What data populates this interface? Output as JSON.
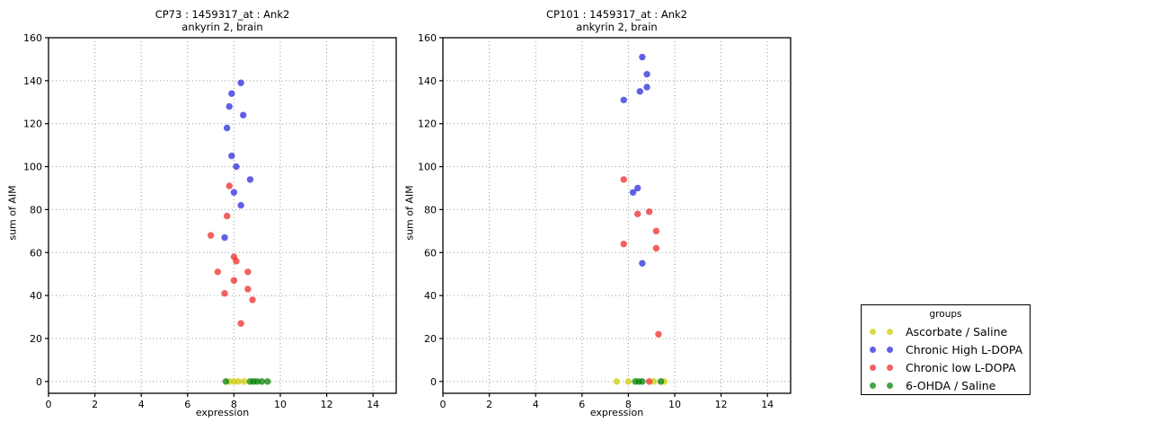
{
  "figure": {
    "background": "#ffffff",
    "grid_color": "#999999",
    "axis_color": "#000000"
  },
  "legend": {
    "title": "groups",
    "entries": [
      {
        "label": "Ascorbate / Saline",
        "color": "#cccc00"
      },
      {
        "label": "Chronic High L-DOPA",
        "color": "#2222dd"
      },
      {
        "label": "Chronic low L-DOPA",
        "color": "#ee2222"
      },
      {
        "label": "6-OHDA / Saline",
        "color": "#008000"
      }
    ]
  },
  "chart_data": [
    {
      "type": "scatter",
      "title_line1": "CP73 : 1459317_at : Ank2",
      "title_line2": "ankyrin 2, brain",
      "xlabel": "expression",
      "ylabel": "sum of AIM",
      "xlim": [
        0,
        15
      ],
      "ylim": [
        -5.5,
        160
      ],
      "xticks": [
        0,
        2,
        4,
        6,
        8,
        10,
        12,
        14
      ],
      "yticks": [
        0,
        20,
        40,
        60,
        80,
        100,
        120,
        140,
        160
      ],
      "grid": true,
      "series": [
        {
          "name": "Ascorbate / Saline",
          "color": "#cccc00",
          "points": [
            [
              7.8,
              0
            ],
            [
              8.0,
              0
            ],
            [
              8.2,
              0
            ],
            [
              8.45,
              0
            ]
          ]
        },
        {
          "name": "Chronic High L-DOPA",
          "color": "#2222dd",
          "points": [
            [
              8.3,
              139
            ],
            [
              7.9,
              134
            ],
            [
              7.8,
              128
            ],
            [
              8.4,
              124
            ],
            [
              7.7,
              118
            ],
            [
              7.9,
              105
            ],
            [
              8.1,
              100
            ],
            [
              8.7,
              94
            ],
            [
              8.0,
              88
            ],
            [
              8.3,
              82
            ],
            [
              7.6,
              67
            ]
          ]
        },
        {
          "name": "Chronic low L-DOPA",
          "color": "#ee2222",
          "points": [
            [
              7.8,
              91
            ],
            [
              7.7,
              77
            ],
            [
              7.0,
              68
            ],
            [
              8.0,
              58
            ],
            [
              8.1,
              56
            ],
            [
              7.3,
              51
            ],
            [
              8.6,
              51
            ],
            [
              8.0,
              47
            ],
            [
              8.6,
              43
            ],
            [
              7.6,
              41
            ],
            [
              8.8,
              38
            ],
            [
              8.3,
              27
            ]
          ]
        },
        {
          "name": "6-OHDA / Saline",
          "color": "#008000",
          "points": [
            [
              7.65,
              0
            ],
            [
              8.7,
              0
            ],
            [
              8.85,
              0
            ],
            [
              9.0,
              0
            ],
            [
              9.2,
              0
            ],
            [
              9.45,
              0
            ]
          ]
        }
      ]
    },
    {
      "type": "scatter",
      "title_line1": "CP101 : 1459317_at : Ank2",
      "title_line2": "ankyrin 2, brain",
      "xlabel": "expression",
      "ylabel": "sum of AIM",
      "xlim": [
        0,
        15
      ],
      "ylim": [
        -5.5,
        160
      ],
      "xticks": [
        0,
        2,
        4,
        6,
        8,
        10,
        12,
        14
      ],
      "yticks": [
        0,
        20,
        40,
        60,
        80,
        100,
        120,
        140,
        160
      ],
      "grid": true,
      "series": [
        {
          "name": "Ascorbate / Saline",
          "color": "#cccc00",
          "points": [
            [
              7.5,
              0
            ],
            [
              8.0,
              0
            ],
            [
              9.1,
              0
            ],
            [
              9.55,
              0
            ]
          ]
        },
        {
          "name": "Chronic High L-DOPA",
          "color": "#2222dd",
          "points": [
            [
              8.6,
              151
            ],
            [
              8.8,
              143
            ],
            [
              8.8,
              137
            ],
            [
              8.5,
              135
            ],
            [
              7.8,
              131
            ],
            [
              8.4,
              90
            ],
            [
              8.2,
              88
            ],
            [
              8.6,
              55
            ]
          ]
        },
        {
          "name": "Chronic low L-DOPA",
          "color": "#ee2222",
          "points": [
            [
              7.8,
              94
            ],
            [
              8.9,
              79
            ],
            [
              8.4,
              78
            ],
            [
              9.2,
              70
            ],
            [
              7.8,
              64
            ],
            [
              9.2,
              62
            ],
            [
              9.3,
              22
            ],
            [
              8.9,
              0
            ]
          ]
        },
        {
          "name": "6-OHDA / Saline",
          "color": "#008000",
          "points": [
            [
              8.3,
              0
            ],
            [
              8.45,
              0
            ],
            [
              8.6,
              0
            ],
            [
              9.4,
              0
            ]
          ]
        }
      ]
    }
  ]
}
